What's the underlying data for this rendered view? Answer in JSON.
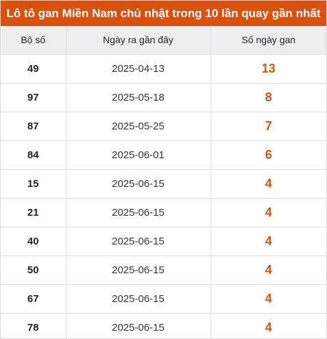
{
  "title": "Lô tô gan Miền Nam chủ nhật trong 10 lần quay gần nhất",
  "columns": {
    "number": "Bộ số",
    "last_date": "Ngày ra gần đây",
    "gap_days": "Số ngày gan"
  },
  "rows": [
    {
      "number": "49",
      "last_date": "2025-04-13",
      "gap_days": "13"
    },
    {
      "number": "97",
      "last_date": "2025-05-18",
      "gap_days": "8"
    },
    {
      "number": "87",
      "last_date": "2025-05-25",
      "gap_days": "7"
    },
    {
      "number": "84",
      "last_date": "2025-06-01",
      "gap_days": "6"
    },
    {
      "number": "15",
      "last_date": "2025-06-15",
      "gap_days": "4"
    },
    {
      "number": "21",
      "last_date": "2025-06-15",
      "gap_days": "4"
    },
    {
      "number": "40",
      "last_date": "2025-06-15",
      "gap_days": "4"
    },
    {
      "number": "50",
      "last_date": "2025-06-15",
      "gap_days": "4"
    },
    {
      "number": "67",
      "last_date": "2025-06-15",
      "gap_days": "4"
    },
    {
      "number": "78",
      "last_date": "2025-06-15",
      "gap_days": "4"
    }
  ],
  "colors": {
    "accent": "#d9510e",
    "header_bg": "#eeeeee",
    "border": "#dedede"
  }
}
